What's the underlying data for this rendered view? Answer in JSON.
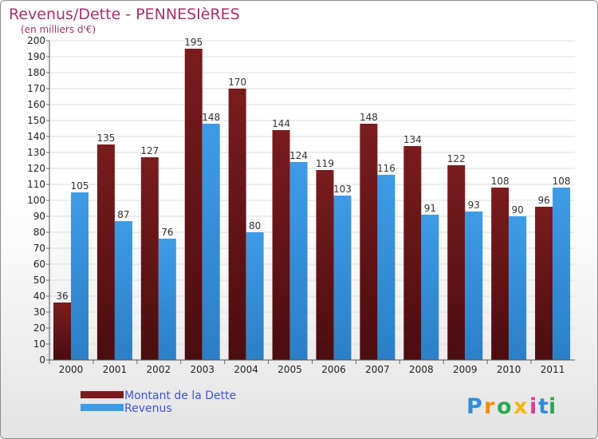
{
  "chart_data": {
    "type": "bar",
    "title": "Revenus/Dette - PENNESIèRES",
    "subtitle": "(en milliers d'€)",
    "categories": [
      "2000",
      "2001",
      "2002",
      "2003",
      "2004",
      "2005",
      "2006",
      "2007",
      "2008",
      "2009",
      "2010",
      "2011"
    ],
    "series": [
      {
        "name": "Montant de la Dette",
        "color": "#7a1c1e",
        "values": [
          36,
          135,
          127,
          195,
          170,
          144,
          119,
          148,
          134,
          122,
          108,
          96
        ]
      },
      {
        "name": "Revenus",
        "color": "#3e9be6",
        "values": [
          105,
          87,
          76,
          148,
          80,
          124,
          103,
          116,
          91,
          93,
          90,
          108
        ]
      }
    ],
    "ylim": [
      0,
      200
    ],
    "ytick_step": 10,
    "grid": true,
    "legend_position": "bottom-left",
    "xlabel": "",
    "ylabel": ""
  },
  "brand": {
    "logo_letters": [
      "P",
      "r",
      "o",
      "x",
      "i",
      "t",
      "i"
    ],
    "logo_colors": [
      "#2f8fd8",
      "#ff8a00",
      "#2fa84f",
      "#f1b800",
      "#d94196",
      "#2f8fd8",
      "#2fa84f"
    ]
  }
}
